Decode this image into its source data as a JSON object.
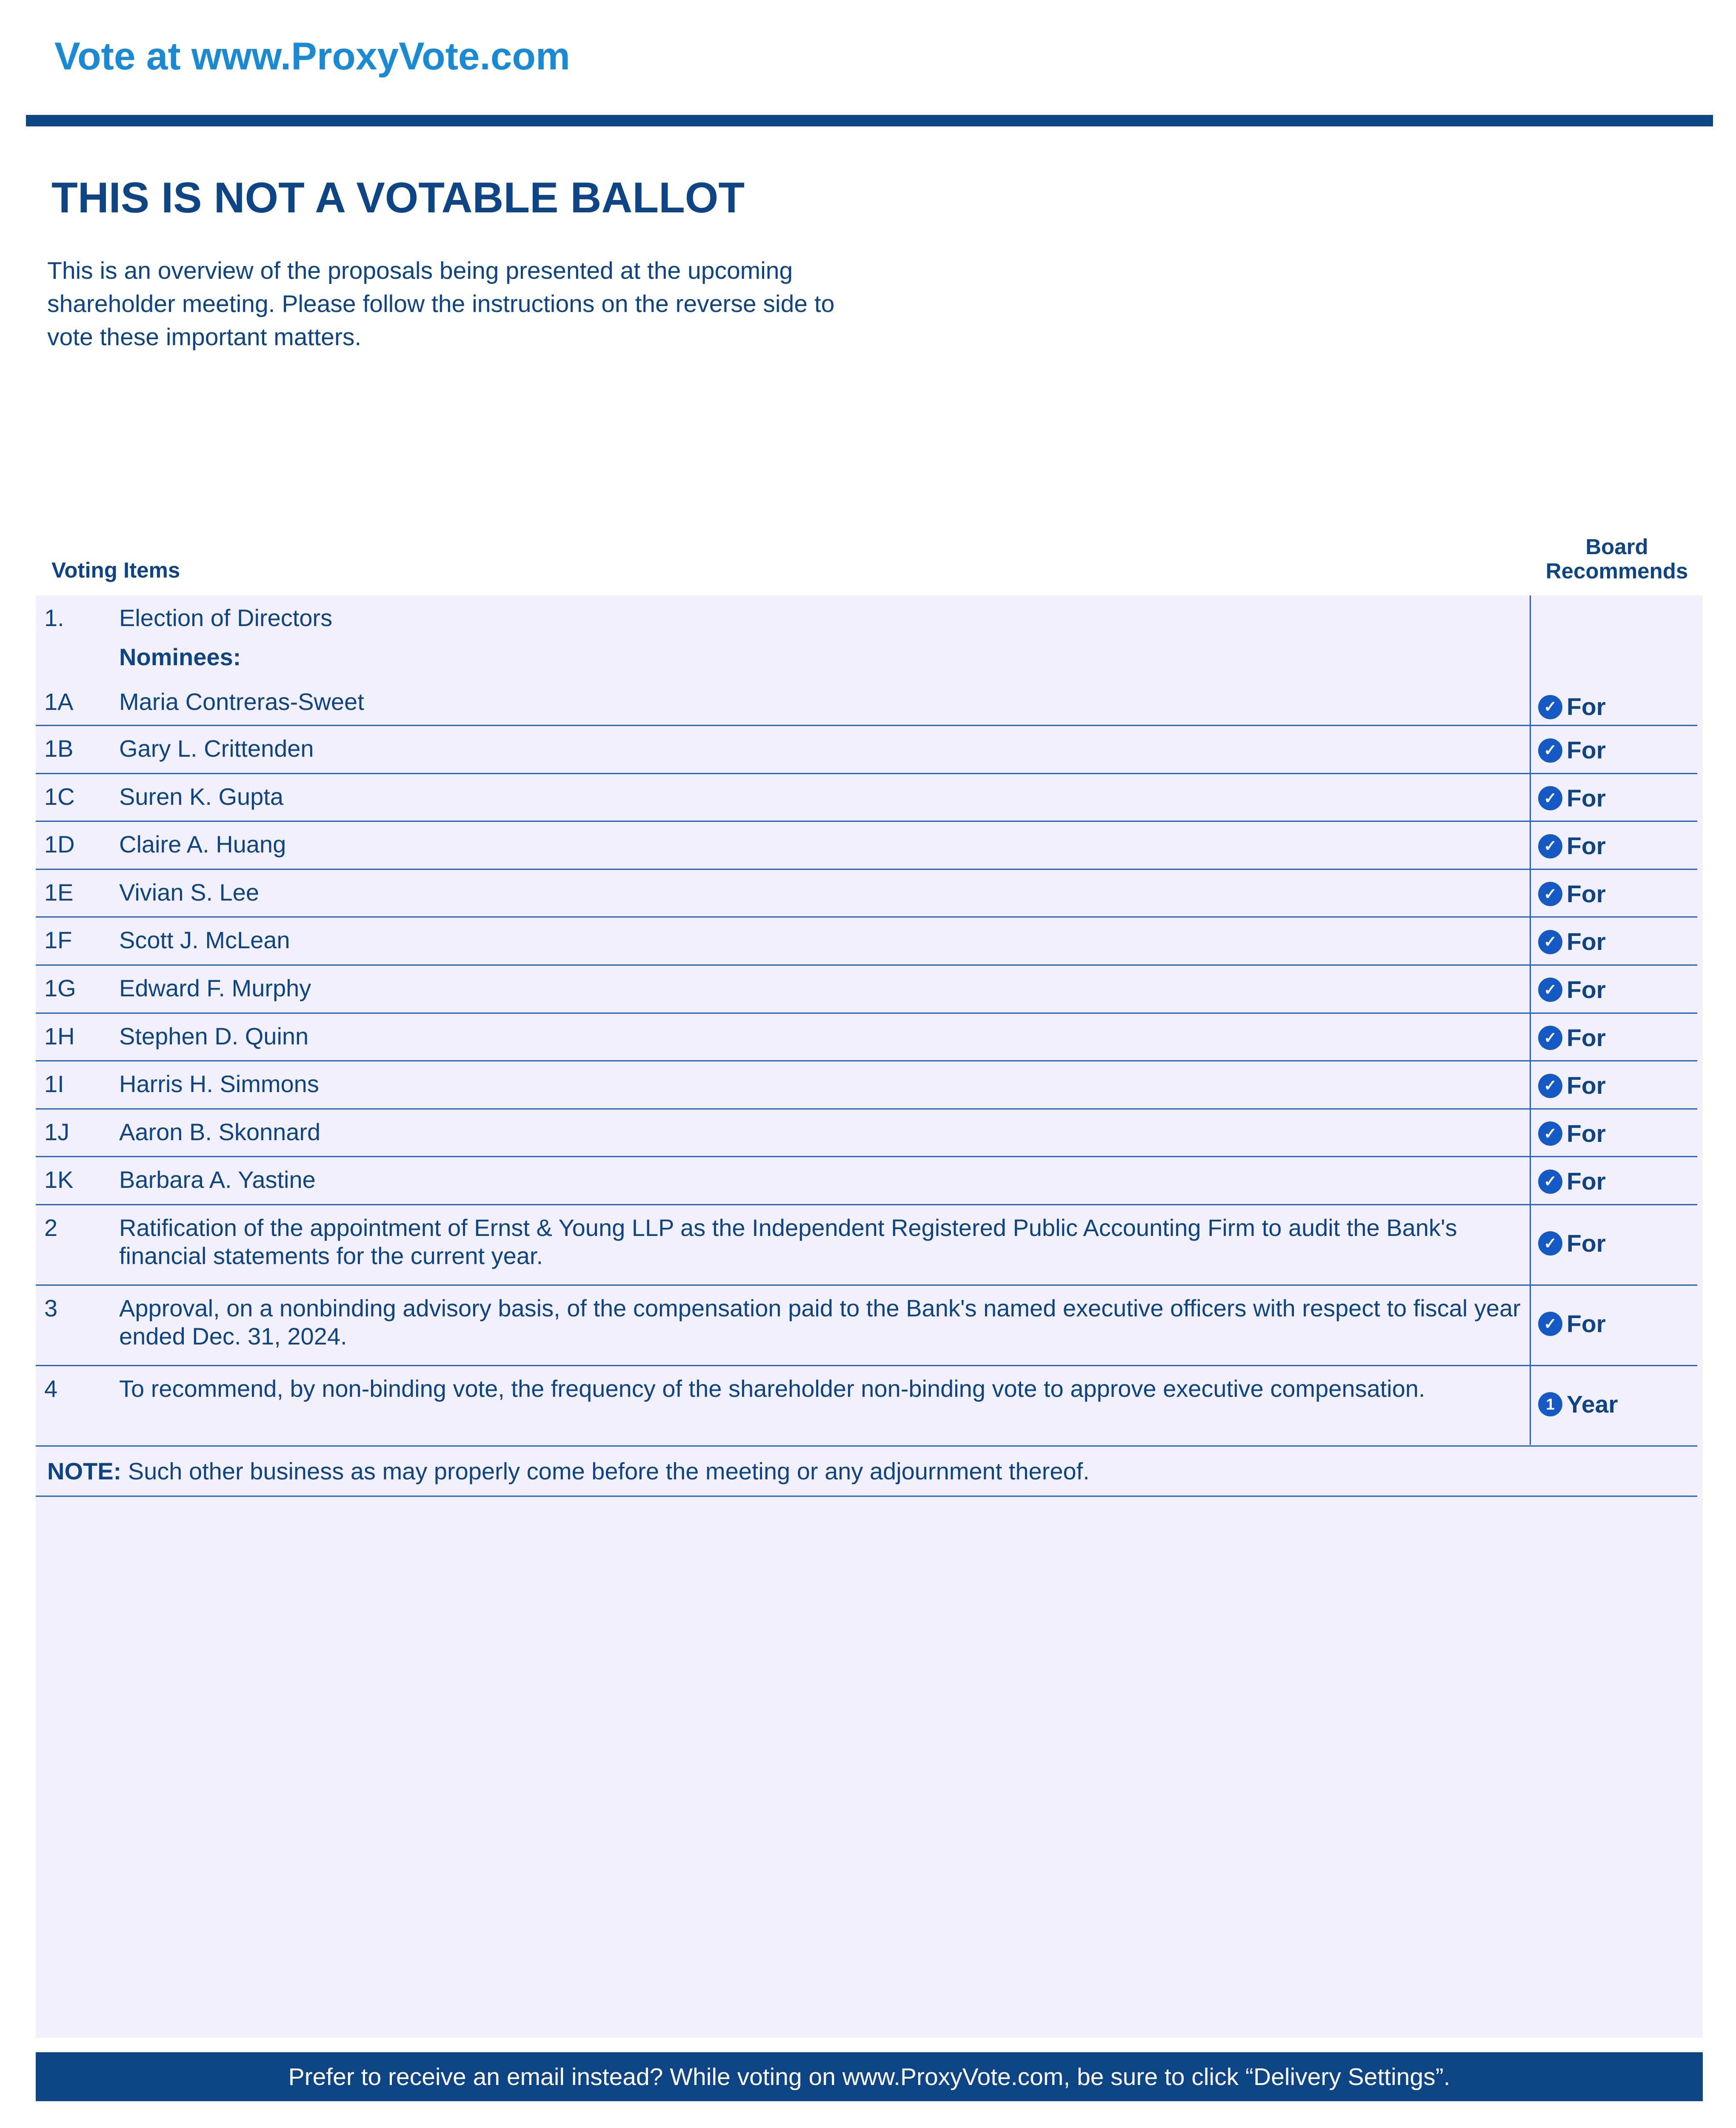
{
  "header": {
    "vote_url_title": "Vote at www.ProxyVote.com"
  },
  "notice": {
    "heading": "THIS IS NOT A VOTABLE BALLOT",
    "intro": "This is an overview of the proposals being presented at the upcoming shareholder meeting. Please follow the instructions on the reverse side to vote these important matters."
  },
  "table": {
    "col_items": "Voting Items",
    "col_board": "Board Recommends",
    "election": {
      "num": "1.",
      "title": "Election of Directors",
      "nominees_label": "Nominees:"
    },
    "rows": [
      {
        "num": "1A",
        "text": "Maria Contreras-Sweet",
        "rec": "For",
        "icon": "check-circle"
      },
      {
        "num": "1B",
        "text": "Gary L. Crittenden",
        "rec": "For",
        "icon": "check-circle"
      },
      {
        "num": "1C",
        "text": "Suren K. Gupta",
        "rec": "For",
        "icon": "check-circle"
      },
      {
        "num": "1D",
        "text": "Claire A. Huang",
        "rec": "For",
        "icon": "check-circle"
      },
      {
        "num": "1E",
        "text": "Vivian S. Lee",
        "rec": "For",
        "icon": "check-circle"
      },
      {
        "num": "1F",
        "text": "Scott J. McLean",
        "rec": "For",
        "icon": "check-circle"
      },
      {
        "num": "1G",
        "text": "Edward F. Murphy",
        "rec": "For",
        "icon": "check-circle"
      },
      {
        "num": "1H",
        "text": "Stephen D. Quinn",
        "rec": "For",
        "icon": "check-circle"
      },
      {
        "num": "1I",
        "text": "Harris H. Simmons",
        "rec": "For",
        "icon": "check-circle"
      },
      {
        "num": "1J",
        "text": "Aaron B. Skonnard",
        "rec": "For",
        "icon": "check-circle"
      },
      {
        "num": "1K",
        "text": "Barbara A. Yastine",
        "rec": "For",
        "icon": "check-circle"
      },
      {
        "num": "2",
        "text": "Ratification of the appointment of Ernst & Young LLP as the Independent Registered Public Accounting Firm to audit the Bank's financial statements for the current year.",
        "rec": "For",
        "icon": "check-circle"
      },
      {
        "num": "3",
        "text": "Approval, on a nonbinding advisory basis, of the compensation paid to the Bank's named executive officers with respect to fiscal year ended Dec. 31, 2024.",
        "rec": "For",
        "icon": "check-circle"
      },
      {
        "num": "4",
        "text": "To recommend, by non-binding vote, the frequency of the shareholder non-binding vote to approve executive compensation.",
        "rec": "Year",
        "icon": "number-one-circle",
        "icon_text": "1"
      }
    ],
    "note": {
      "label": "NOTE:",
      "text": " Such other business as may properly come before the meeting or any adjournment thereof."
    }
  },
  "footer": {
    "text": "Prefer to receive an email instead? While voting on www.ProxyVote.com, be sure to click “Delivery Settings”."
  },
  "colors": {
    "accent_light": "#1a8ad4",
    "brand_navy": "#0c4486",
    "rule_blue": "#1f66cc",
    "table_bg": "#f2f0fc",
    "icon_blue": "#1559c4"
  }
}
